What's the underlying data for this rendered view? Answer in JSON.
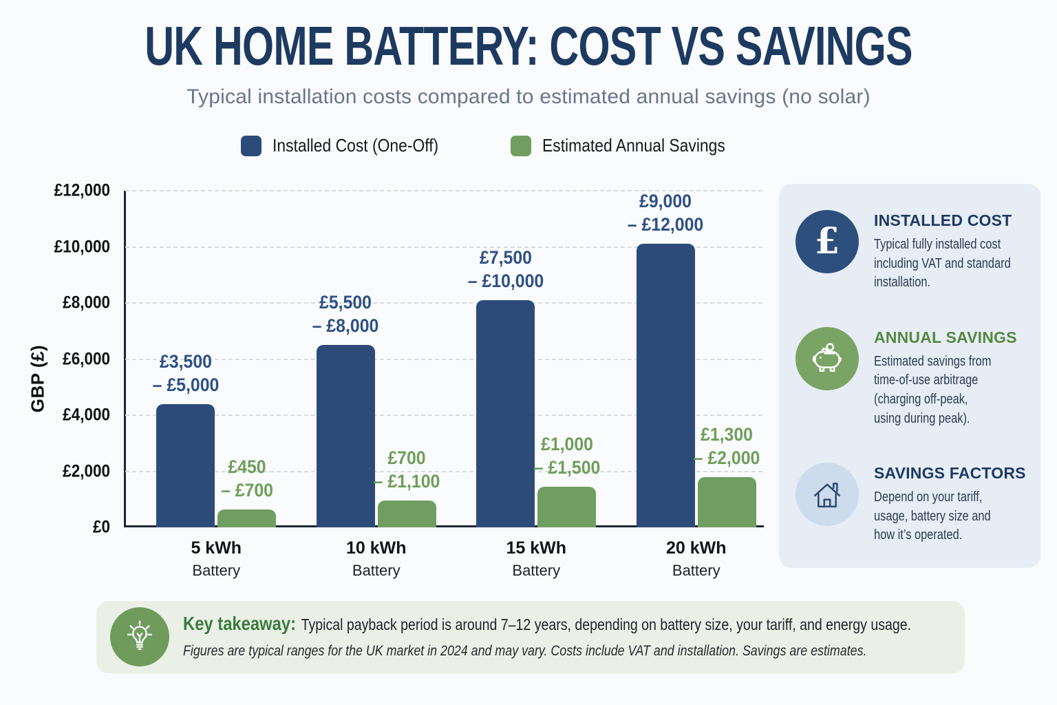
{
  "title": "UK HOME BATTERY: COST VS SAVINGS",
  "subtitle": "Typical installation costs compared to estimated annual savings (no solar)",
  "chart_data": {
    "type": "bar",
    "title": "UK HOME BATTERY: COST VS SAVINGS",
    "categories": [
      "5 kWh",
      "10 kWh",
      "15 kWh",
      "20 kWh"
    ],
    "category_sublabel": "Battery",
    "series": [
      {
        "name": "Installed Cost (One-Off)",
        "color": "#2d4b79",
        "label_color": "#2d5184",
        "values": [
          4400,
          6500,
          8100,
          10100
        ],
        "range_labels": [
          "£3,500\n– £5,000",
          "£5,500\n– £8,000",
          "£7,500\n– £10,000",
          "£9,000\n– £12,000"
        ]
      },
      {
        "name": "Estimated Annual Savings",
        "color": "#6f9e60",
        "label_color": "#6e9f59",
        "values": [
          650,
          950,
          1450,
          1800
        ],
        "range_labels": [
          "£450\n– £700",
          "£700\n– £1,100",
          "£1,000\n– £1,500",
          "£1,300\n– £2,000"
        ]
      }
    ],
    "xlabel": "",
    "ylabel": "GBP (£)",
    "yticks": [
      "£0",
      "£2,000",
      "£4,000",
      "£6,000",
      "£8,000",
      "£10,000",
      "£12,000"
    ],
    "ylim": [
      0,
      12000
    ],
    "grid": "horizontal-dashed",
    "legend_position": "top-center"
  },
  "sidebar": {
    "items": [
      {
        "icon": "pound-sign-icon",
        "icon_glyph": "£",
        "title": "INSTALLED COST",
        "body": "Typical fully installed cost\nincluding VAT and standard\ninstallation."
      },
      {
        "icon": "piggy-bank-icon",
        "title": "ANNUAL SAVINGS",
        "body": "Estimated savings from\ntime-of-use arbitrage\n(charging off-peak,\nusing during peak)."
      },
      {
        "icon": "house-icon",
        "title": "SAVINGS FACTORS",
        "body": "Depend on your tariff,\nusage, battery size and\nhow it’s operated."
      }
    ]
  },
  "takeaway": {
    "icon": "lightbulb-icon",
    "heading": "Key takeaway:",
    "text": "Typical payback period is around 7–12 years, depending on battery size, your tariff, and energy usage.",
    "footnote": "Figures are typical ranges for the UK market in 2024 and may vary. Costs include VAT and installation. Savings are estimates."
  }
}
